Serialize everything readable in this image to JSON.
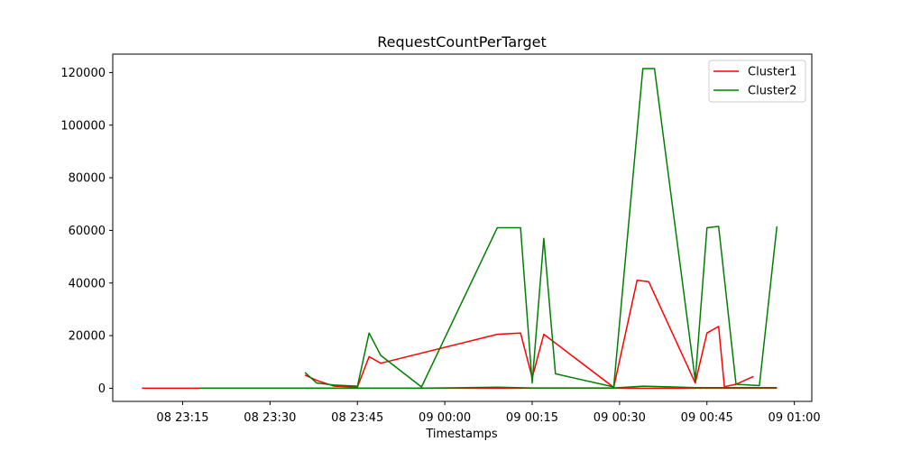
{
  "chart_data": {
    "type": "line",
    "title": "RequestCountPerTarget",
    "xlabel": "Timestamps",
    "ylabel": "",
    "x_axis": "time",
    "xlim": [
      "08 23:03",
      "09 01:03"
    ],
    "ylim": [
      -5000,
      127000
    ],
    "xticks": [
      {
        "t": "08 23:15",
        "label": "08 23:15"
      },
      {
        "t": "08 23:30",
        "label": "08 23:30"
      },
      {
        "t": "08 23:45",
        "label": "08 23:45"
      },
      {
        "t": "09 00:00",
        "label": "09 00:00"
      },
      {
        "t": "09 00:15",
        "label": "09 00:15"
      },
      {
        "t": "09 00:30",
        "label": "09 00:30"
      },
      {
        "t": "09 00:45",
        "label": "09 00:45"
      },
      {
        "t": "09 01:00",
        "label": "09 01:00"
      }
    ],
    "yticks": [
      0,
      20000,
      40000,
      60000,
      80000,
      100000,
      120000
    ],
    "legend": {
      "placement": "upper-right"
    },
    "grid": false,
    "series": [
      {
        "name": "Cluster1",
        "color": "#ff0000",
        "lines": [
          [
            [
              "08 23:08",
              0
            ],
            [
              "08 23:18",
              0
            ],
            [
              "08 23:33",
              0
            ],
            [
              "08 23:44",
              0
            ],
            [
              "08 23:52",
              0
            ],
            [
              "08 23:58",
              0
            ],
            [
              "09 00:09",
              0
            ],
            [
              "09 00:15",
              0
            ],
            [
              "09 00:24",
              0
            ],
            [
              "09 00:29",
              0
            ],
            [
              "09 00:38",
              0
            ],
            [
              "09 00:43",
              0
            ],
            [
              "09 00:50",
              0
            ],
            [
              "09 00:57",
              0
            ]
          ],
          [
            [
              "08 23:36",
              5000
            ],
            [
              "08 23:38",
              3000
            ],
            [
              "08 23:41",
              800
            ],
            [
              "08 23:45",
              500
            ],
            [
              "08 23:47",
              12000
            ],
            [
              "08 23:49",
              9500
            ],
            [
              "09 00:09",
              20500
            ],
            [
              "09 00:13",
              21000
            ],
            [
              "09 00:15",
              4000
            ],
            [
              "09 00:17",
              20500
            ],
            [
              "09 00:29",
              300
            ],
            [
              "09 00:33",
              41000
            ],
            [
              "09 00:35",
              40500
            ],
            [
              "09 00:43",
              2000
            ],
            [
              "09 00:45",
              21000
            ],
            [
              "09 00:47",
              23500
            ],
            [
              "09 00:48",
              600
            ],
            [
              "09 00:50",
              1500
            ],
            [
              "09 00:53",
              4500
            ]
          ]
        ]
      },
      {
        "name": "Cluster2",
        "color": "#008000",
        "lines": [
          [
            [
              "08 23:18",
              0
            ],
            [
              "08 23:33",
              0
            ],
            [
              "08 23:44",
              0
            ],
            [
              "08 23:55",
              0
            ],
            [
              "09 00:09",
              400
            ],
            [
              "09 00:15",
              100
            ],
            [
              "09 00:29",
              100
            ],
            [
              "09 00:34",
              800
            ],
            [
              "09 00:38",
              600
            ],
            [
              "09 00:43",
              200
            ],
            [
              "09 00:50",
              200
            ],
            [
              "09 00:57",
              200
            ]
          ],
          [
            [
              "08 23:36",
              6000
            ],
            [
              "08 23:38",
              2000
            ],
            [
              "08 23:41",
              1200
            ],
            [
              "08 23:45",
              800
            ],
            [
              "08 23:47",
              21000
            ],
            [
              "08 23:49",
              12500
            ],
            [
              "08 23:56",
              500
            ],
            [
              "09 00:09",
              61000
            ],
            [
              "09 00:13",
              61000
            ],
            [
              "09 00:15",
              2000
            ],
            [
              "09 00:17",
              57000
            ],
            [
              "09 00:19",
              5500
            ],
            [
              "09 00:29",
              500
            ],
            [
              "09 00:34",
              121500
            ],
            [
              "09 00:36",
              121500
            ],
            [
              "09 00:43",
              3000
            ],
            [
              "09 00:45",
              61000
            ],
            [
              "09 00:47",
              61500
            ],
            [
              "09 00:50",
              1500
            ],
            [
              "09 00:54",
              1000
            ],
            [
              "09 00:57",
              61500
            ]
          ]
        ]
      }
    ]
  }
}
